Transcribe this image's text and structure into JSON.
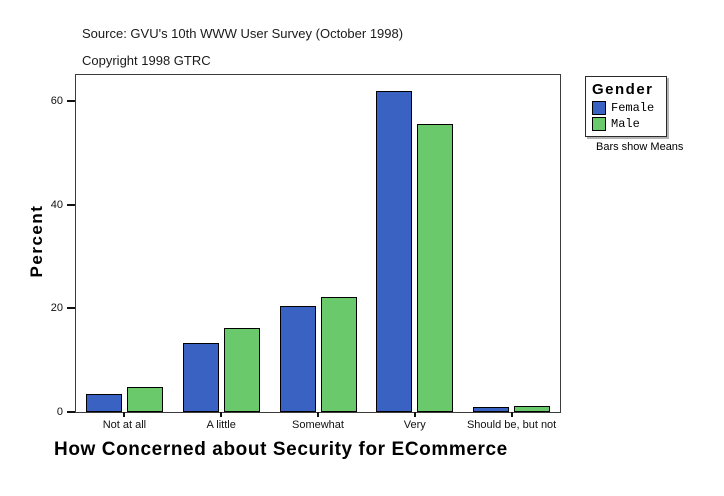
{
  "header": {
    "source": "Source: GVU's 10th WWW User Survey (October 1998)",
    "copyright": "Copyright 1998 GTRC"
  },
  "legend": {
    "title": "Gender",
    "items": [
      {
        "label": "Female",
        "color": "#3A62C2"
      },
      {
        "label": "Male",
        "color": "#6AC96A"
      }
    ],
    "note": "Bars show Means"
  },
  "chart_data": {
    "type": "bar",
    "title": "How Concerned about Security for ECommerce",
    "xlabel": "How Concerned about Security for ECommerce",
    "ylabel": "Percent",
    "categories": [
      "Not at all",
      "A little",
      "Somewhat",
      "Very",
      "Should be, but not"
    ],
    "series": [
      {
        "name": "Female",
        "color": "#3A62C2",
        "values": [
          3.4,
          13.4,
          20.4,
          62.0,
          0.9
        ]
      },
      {
        "name": "Male",
        "color": "#6AC96A",
        "values": [
          4.8,
          16.2,
          22.2,
          55.6,
          1.1
        ]
      }
    ],
    "yticks": [
      0,
      20,
      40,
      60
    ],
    "ylim": [
      0,
      65
    ],
    "grid": false,
    "legend_position": "right",
    "note": "Bars show Means"
  }
}
